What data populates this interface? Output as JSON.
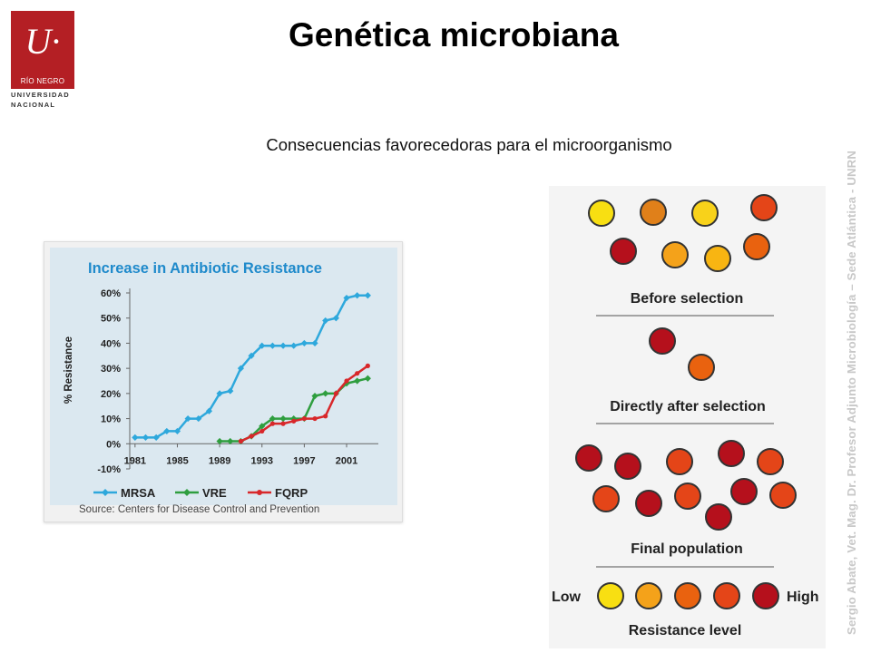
{
  "logo": {
    "mark": "U·",
    "line1": "RÍO NEGRO",
    "line2": "UNIVERSIDAD",
    "line3": "NACIONAL"
  },
  "slide": {
    "title": "Genética microbiana",
    "subtitle": "Consecuencias favorecedoras para el microorganismo",
    "side_text": "Sergio Abate, Vet. Mag. Dr.  Profesor Adjunto Microbiología – Sede Atlántica - UNRN"
  },
  "chart_data": {
    "type": "line",
    "title": "Increase in Antibiotic Resistance",
    "ylabel": "% Resistance",
    "xlabel": "",
    "ylim": [
      -10,
      60
    ],
    "yticks": [
      "60%",
      "50%",
      "40%",
      "30%",
      "20%",
      "10%",
      "0%",
      "-10%"
    ],
    "xticks": [
      "1981",
      "1985",
      "1989",
      "1993",
      "1997",
      "2001"
    ],
    "xlim": [
      1980.5,
      2004
    ],
    "grid": false,
    "legend": "bottom",
    "source": "Source: Centers for Disease Control and Prevention",
    "series": [
      {
        "name": "MRSA",
        "color": "#2ea8dc",
        "marker": "diamond",
        "x": [
          1981,
          1982,
          1983,
          1984,
          1985,
          1986,
          1987,
          1988,
          1989,
          1990,
          1991,
          1992,
          1993,
          1994,
          1995,
          1996,
          1997,
          1998,
          1999,
          2000,
          2001,
          2002,
          2003
        ],
        "y": [
          2.5,
          2.5,
          2.5,
          5,
          5,
          10,
          10,
          13,
          20,
          21,
          30,
          35,
          39,
          39,
          39,
          39,
          40,
          40,
          49,
          50,
          58,
          59,
          59
        ]
      },
      {
        "name": "VRE",
        "color": "#2f9e3f",
        "marker": "diamond",
        "x": [
          1989,
          1990,
          1991,
          1992,
          1993,
          1994,
          1995,
          1996,
          1997,
          1998,
          1999,
          2000,
          2001,
          2002,
          2003
        ],
        "y": [
          1,
          1,
          1,
          3,
          7,
          10,
          10,
          10,
          10,
          19,
          20,
          20,
          24,
          25,
          26
        ]
      },
      {
        "name": "FQRP",
        "color": "#d8272a",
        "marker": "dot",
        "x": [
          1991,
          1992,
          1993,
          1994,
          1995,
          1996,
          1997,
          1998,
          1999,
          2000,
          2001,
          2002,
          2003
        ],
        "y": [
          1,
          3,
          5,
          8,
          8,
          9,
          10,
          10,
          11,
          20,
          25,
          28,
          31
        ]
      }
    ]
  },
  "selection": {
    "label_before": "Before selection",
    "label_after": "Directly after selection",
    "label_final": "Final population",
    "label_low": "Low",
    "label_high": "High",
    "label_level": "Resistance level",
    "colors": {
      "yellow": "#f8df12",
      "amber": "#f4a21a",
      "orange": "#e9620f",
      "orangered": "#e44518",
      "darkred": "#b5101c",
      "darkorange": "#e0801a"
    }
  }
}
